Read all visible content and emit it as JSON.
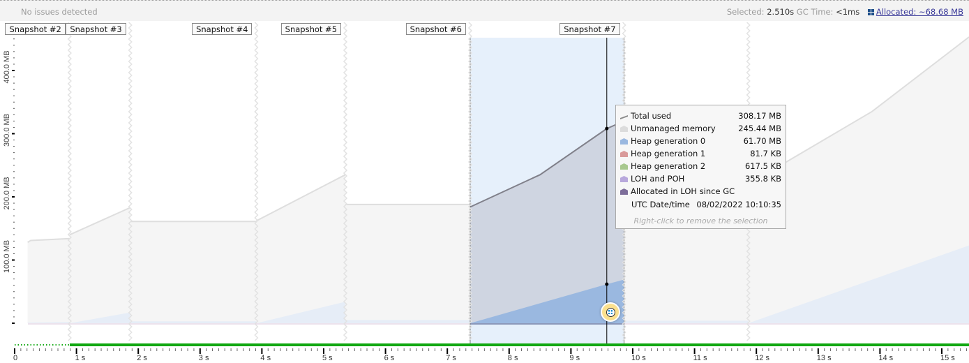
{
  "status_bar": {
    "status": "No issues detected",
    "selected_label": "Selected:",
    "selected_value": "2.510s",
    "gc_label": "GC Time:",
    "gc_value": "<1ms",
    "allocated_icon": "grid-icon",
    "allocated_link": "Allocated: ~68.68 MB"
  },
  "snapshots": [
    {
      "label": "Snapshot #2",
      "time_s": 0.89
    },
    {
      "label": "Snapshot #3",
      "time_s": 1.87
    },
    {
      "label": "Snapshot #4",
      "time_s": 3.91
    },
    {
      "label": "Snapshot #5",
      "time_s": 5.35
    },
    {
      "label": "Snapshot #6",
      "time_s": 7.37
    },
    {
      "label": "Snapshot #7",
      "time_s": 9.86
    }
  ],
  "snapshot_boundaries_s": [
    0.89,
    1.87,
    3.91,
    5.35,
    7.37,
    9.86,
    11.87
  ],
  "selection": {
    "start_s": 7.37,
    "end_s": 9.86,
    "cursor_s": 9.58
  },
  "tooltip": {
    "rows": [
      {
        "label": "Total used",
        "value": "308.17 MB",
        "icon": "line-icon",
        "color": "#8a8a8a"
      },
      {
        "label": "Unmanaged memory",
        "value": "245.44 MB",
        "icon": "area-icon",
        "color": "#dcdcdc"
      },
      {
        "label": "Heap generation 0",
        "value": "61.70 MB",
        "icon": "area-icon",
        "color": "#9ab8e0"
      },
      {
        "label": "Heap generation 1",
        "value": "81.7 KB",
        "icon": "area-icon",
        "color": "#d99a9a"
      },
      {
        "label": "Heap generation 2",
        "value": "617.5 KB",
        "icon": "area-icon",
        "color": "#a8c88e"
      },
      {
        "label": "LOH and POH",
        "value": "355.8 KB",
        "icon": "area-icon",
        "color": "#b8a8dc"
      },
      {
        "label": "Allocated in LOH since GC",
        "value": "",
        "icon": "area-icon",
        "color": "#7d6e9a"
      }
    ],
    "date_label": "UTC Date/time",
    "date_value": "08/02/2022 10:10:35",
    "hint": "Right-click to remove the selection"
  },
  "chart_data": {
    "type": "area",
    "x_unit": "s",
    "xlim": [
      0,
      15.44
    ],
    "ylim": [
      0,
      460
    ],
    "x_ticks": [
      "0",
      "1 s",
      "2 s",
      "3 s",
      "4 s",
      "5 s",
      "6 s",
      "7 s",
      "8 s",
      "9 s",
      "10 s",
      "11 s",
      "12 s",
      "13 s",
      "14 s",
      "15 s"
    ],
    "y_ticks": [
      "100.0 MB",
      "200.0 MB",
      "300.0 MB",
      "400.0 MB"
    ],
    "total_used_segments": [
      [
        [
          0.21,
          128
        ],
        [
          0.26,
          131
        ],
        [
          0.89,
          134
        ]
      ],
      [
        [
          0.89,
          140
        ],
        [
          1.87,
          183
        ]
      ],
      [
        [
          1.87,
          161
        ],
        [
          3.91,
          161
        ]
      ],
      [
        [
          3.91,
          162
        ],
        [
          5.35,
          235
        ]
      ],
      [
        [
          5.35,
          188
        ],
        [
          7.37,
          188
        ]
      ],
      [
        [
          7.37,
          184
        ],
        [
          8.5,
          235
        ],
        [
          9.58,
          308
        ],
        [
          9.86,
          320
        ]
      ],
      [
        [
          9.86,
          322
        ],
        [
          11.87,
          322
        ]
      ],
      [
        [
          11.87,
          223
        ],
        [
          12.48,
          255
        ],
        [
          13.87,
          335
        ],
        [
          15.44,
          453
        ]
      ]
    ],
    "heap_gen0_segments": [
      [
        [
          0.21,
          1
        ],
        [
          0.89,
          2
        ]
      ],
      [
        [
          0.89,
          0
        ],
        [
          1.87,
          17
        ]
      ],
      [
        [
          1.87,
          3
        ],
        [
          3.91,
          3
        ]
      ],
      [
        [
          3.91,
          0
        ],
        [
          5.35,
          34
        ]
      ],
      [
        [
          5.35,
          5
        ],
        [
          7.37,
          5
        ]
      ],
      [
        [
          7.37,
          0
        ],
        [
          9.58,
          61.7
        ],
        [
          9.86,
          69
        ]
      ],
      [
        [
          9.86,
          4
        ],
        [
          11.87,
          4
        ]
      ],
      [
        [
          11.87,
          0
        ],
        [
          15.44,
          123
        ]
      ]
    ],
    "timeline_bar_color": "#12a812"
  }
}
